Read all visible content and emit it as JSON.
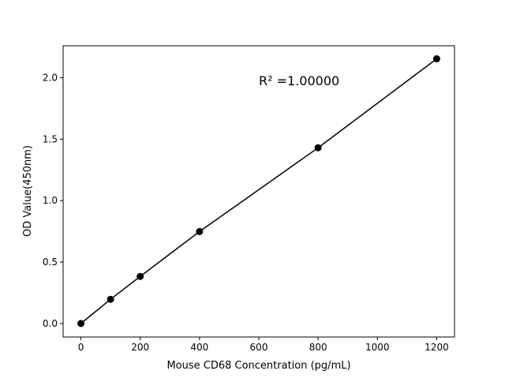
{
  "chart_data": {
    "type": "scatter",
    "title": "",
    "xlabel": "Mouse CD68 Concentration (pg/mL)",
    "ylabel": "OD Value(450nm)",
    "xlim": [
      -60,
      1260
    ],
    "ylim": [
      -0.11,
      2.26
    ],
    "xticks": [
      0,
      200,
      400,
      600,
      800,
      1000,
      1200
    ],
    "yticks": [
      0.0,
      0.5,
      1.0,
      1.5,
      2.0
    ],
    "xtick_labels": [
      "0",
      "200",
      "400",
      "600",
      "800",
      "1000",
      "1200"
    ],
    "ytick_labels": [
      "0.0",
      "0.5",
      "1.0",
      "1.5",
      "2.0"
    ],
    "grid": false,
    "annotation": "R² =1.00000",
    "series": [
      {
        "x": [
          0,
          100,
          200,
          400,
          800,
          1200
        ],
        "y": [
          0.0,
          0.197,
          0.383,
          0.748,
          1.43,
          2.154
        ],
        "color": "#000000",
        "marker": "circle",
        "fit_line": true
      }
    ]
  }
}
